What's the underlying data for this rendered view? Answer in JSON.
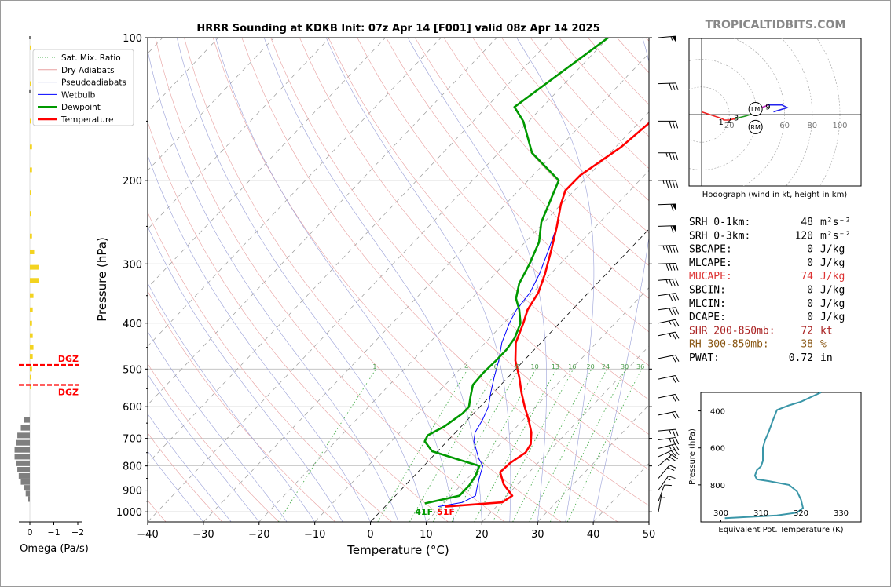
{
  "title": "HRRR Sounding at KDKB Init: 07z Apr 14 [F001] valid 08z Apr 14 2025",
  "watermark": "TROPICALTIDBITS.COM",
  "omega": {
    "xlabel": "Omega (Pa/s)",
    "ticks": [
      "0",
      "−1",
      "−2"
    ],
    "dgz_label": "DGZ",
    "dgz_pressures": [
      490,
      540
    ],
    "yellow_bars": [
      {
        "p": 105,
        "v": 0.02
      },
      {
        "p": 125,
        "v": 0.02
      },
      {
        "p": 150,
        "v": 0.02
      },
      {
        "p": 170,
        "v": 0.03
      },
      {
        "p": 190,
        "v": 0.03
      },
      {
        "p": 212,
        "v": 0.02
      },
      {
        "p": 235,
        "v": 0.02
      },
      {
        "p": 262,
        "v": 0.03
      },
      {
        "p": 283,
        "v": 0.06
      },
      {
        "p": 305,
        "v": 0.12
      },
      {
        "p": 325,
        "v": 0.12
      },
      {
        "p": 350,
        "v": 0.05
      },
      {
        "p": 375,
        "v": 0.04
      },
      {
        "p": 400,
        "v": 0.03
      },
      {
        "p": 425,
        "v": 0.04
      },
      {
        "p": 450,
        "v": 0.05
      },
      {
        "p": 470,
        "v": 0.04
      },
      {
        "p": 500,
        "v": 0.03
      },
      {
        "p": 520,
        "v": 0.02
      },
      {
        "p": 545,
        "v": 0.02
      }
    ],
    "gray_bars": [
      {
        "p": 640,
        "v": 0.08
      },
      {
        "p": 665,
        "v": 0.13
      },
      {
        "p": 690,
        "v": 0.18
      },
      {
        "p": 715,
        "v": 0.2
      },
      {
        "p": 740,
        "v": 0.22
      },
      {
        "p": 765,
        "v": 0.22
      },
      {
        "p": 790,
        "v": 0.2
      },
      {
        "p": 815,
        "v": 0.18
      },
      {
        "p": 840,
        "v": 0.16
      },
      {
        "p": 865,
        "v": 0.13
      },
      {
        "p": 890,
        "v": 0.09
      },
      {
        "p": 915,
        "v": 0.06
      },
      {
        "p": 940,
        "v": 0.03
      }
    ],
    "top_tick_pressures": [
      100,
      130
    ]
  },
  "legend": [
    {
      "label": "Sat. Mix. Ratio",
      "color": "#4caf50",
      "style": "dotted",
      "width": 1
    },
    {
      "label": "Dry Adiabats",
      "color": "#e8a0a0",
      "style": "solid",
      "width": 1
    },
    {
      "label": "Pseudoadiabats",
      "color": "#9aa0d8",
      "style": "solid",
      "width": 1
    },
    {
      "label": "Wetbulb",
      "color": "#0000ff",
      "style": "solid",
      "width": 1
    },
    {
      "label": "Dewpoint",
      "color": "#009900",
      "style": "solid",
      "width": 2.5
    },
    {
      "label": "Temperature",
      "color": "#ff0000",
      "style": "solid",
      "width": 2.5
    }
  ],
  "chart_data": {
    "type": "line",
    "subtype": "skew-t log-p",
    "xlabel": "Temperature (°C)",
    "ylabel": "Pressure (hPa)",
    "xlim": [
      -40,
      50
    ],
    "ylim": [
      1050,
      100
    ],
    "y_scale": "log",
    "x_ticks": [
      "−40",
      "−30",
      "−20",
      "−10",
      "0",
      "10",
      "20",
      "30",
      "40",
      "50"
    ],
    "y_ticks": [
      100,
      200,
      300,
      400,
      500,
      600,
      700,
      800,
      900,
      1000
    ],
    "mixing_ratio_labels": [
      "1",
      "4",
      "6",
      "8",
      "10",
      "13",
      "16",
      "20",
      "24",
      "30",
      "36"
    ],
    "mixing_ratio_values": [
      1,
      4,
      6,
      8,
      10,
      13,
      16,
      20,
      24,
      30,
      36
    ],
    "surface_labels": {
      "temperature": "51F",
      "dewpoint": "41F"
    },
    "series": [
      {
        "name": "Temperature",
        "color": "#ff0000",
        "points": [
          [
            10.8,
            975
          ],
          [
            20.3,
            955
          ],
          [
            21.0,
            925
          ],
          [
            17.5,
            875
          ],
          [
            14.8,
            825
          ],
          [
            15.0,
            790
          ],
          [
            16.0,
            750
          ],
          [
            15.5,
            720
          ],
          [
            13.6,
            680
          ],
          [
            11.0,
            640
          ],
          [
            8.0,
            600
          ],
          [
            5.0,
            560
          ],
          [
            2.0,
            520
          ],
          [
            -1.5,
            480
          ],
          [
            -4.5,
            440
          ],
          [
            -6.5,
            400
          ],
          [
            -8.0,
            375
          ],
          [
            -9.0,
            345
          ],
          [
            -11.0,
            315
          ],
          [
            -14.0,
            280
          ],
          [
            -17.0,
            250
          ],
          [
            -20.0,
            225
          ],
          [
            -21.6,
            210
          ],
          [
            -21.5,
            195
          ],
          [
            -19.0,
            170
          ],
          [
            -18.0,
            150
          ],
          [
            -18.0,
            140
          ],
          [
            -18.5,
            125
          ],
          [
            -17.0,
            100
          ]
        ]
      },
      {
        "name": "Dewpoint",
        "color": "#009900",
        "points": [
          [
            6.6,
            960
          ],
          [
            11.5,
            925
          ],
          [
            11.5,
            880
          ],
          [
            11.0,
            840
          ],
          [
            10.0,
            800
          ],
          [
            6.0,
            780
          ],
          [
            -1.0,
            745
          ],
          [
            -4.0,
            710
          ],
          [
            -4.5,
            690
          ],
          [
            -3.0,
            660
          ],
          [
            -2.0,
            620
          ],
          [
            -2.0,
            600
          ],
          [
            -3.5,
            570
          ],
          [
            -5.0,
            540
          ],
          [
            -5.2,
            510
          ],
          [
            -5.0,
            480
          ],
          [
            -5.0,
            455
          ],
          [
            -5.5,
            430
          ],
          [
            -7.0,
            400
          ],
          [
            -9.5,
            375
          ],
          [
            -12.0,
            355
          ],
          [
            -14.0,
            330
          ],
          [
            -15.5,
            300
          ],
          [
            -17.5,
            270
          ],
          [
            -20.5,
            245
          ],
          [
            -24.5,
            200
          ],
          [
            -34.0,
            175
          ],
          [
            -41.0,
            150
          ],
          [
            -45.0,
            140
          ],
          [
            -40.0,
            100
          ]
        ]
      },
      {
        "name": "Wetbulb",
        "color": "#0000ff",
        "points": [
          [
            9.5,
            975
          ],
          [
            13.2,
            955
          ],
          [
            14.4,
            925
          ],
          [
            13.0,
            880
          ],
          [
            11.8,
            840
          ],
          [
            10.6,
            800
          ],
          [
            8.5,
            770
          ],
          [
            7.0,
            745
          ],
          [
            4.8,
            710
          ],
          [
            3.5,
            680
          ],
          [
            2.7,
            640
          ],
          [
            1.5,
            600
          ],
          [
            -0.5,
            560
          ],
          [
            -2.5,
            520
          ],
          [
            -4.5,
            480
          ],
          [
            -7.0,
            440
          ],
          [
            -9.0,
            400
          ],
          [
            -10.0,
            375
          ],
          [
            -10.5,
            345
          ],
          [
            -12.0,
            315
          ],
          [
            -14.5,
            280
          ],
          [
            -17.0,
            250
          ],
          [
            -20.0,
            225
          ],
          [
            -21.6,
            210
          ],
          [
            -21.5,
            195
          ],
          [
            -19.0,
            170
          ],
          [
            -18.0,
            150
          ],
          [
            -19.0,
            125
          ],
          [
            -17.0,
            100
          ]
        ]
      }
    ],
    "wind_barbs": [
      {
        "p": 100,
        "dir": 265,
        "spd": 55
      },
      {
        "p": 125,
        "dir": 268,
        "spd": 30
      },
      {
        "p": 150,
        "dir": 270,
        "spd": 30
      },
      {
        "p": 175,
        "dir": 270,
        "spd": 35
      },
      {
        "p": 200,
        "dir": 270,
        "spd": 45
      },
      {
        "p": 225,
        "dir": 268,
        "spd": 60
      },
      {
        "p": 250,
        "dir": 268,
        "spd": 60
      },
      {
        "p": 275,
        "dir": 268,
        "spd": 45
      },
      {
        "p": 300,
        "dir": 268,
        "spd": 40
      },
      {
        "p": 325,
        "dir": 265,
        "spd": 35
      },
      {
        "p": 350,
        "dir": 262,
        "spd": 30
      },
      {
        "p": 375,
        "dir": 262,
        "spd": 30
      },
      {
        "p": 400,
        "dir": 258,
        "spd": 25
      },
      {
        "p": 425,
        "dir": 258,
        "spd": 25
      },
      {
        "p": 475,
        "dir": 258,
        "spd": 20
      },
      {
        "p": 525,
        "dir": 258,
        "spd": 20
      },
      {
        "p": 575,
        "dir": 258,
        "spd": 20
      },
      {
        "p": 625,
        "dir": 258,
        "spd": 20
      },
      {
        "p": 675,
        "dir": 265,
        "spd": 25
      },
      {
        "p": 705,
        "dir": 262,
        "spd": 25
      },
      {
        "p": 735,
        "dir": 255,
        "spd": 25
      },
      {
        "p": 765,
        "dir": 245,
        "spd": 25
      },
      {
        "p": 800,
        "dir": 230,
        "spd": 25
      },
      {
        "p": 850,
        "dir": 220,
        "spd": 20
      },
      {
        "p": 900,
        "dir": 215,
        "spd": 15
      },
      {
        "p": 950,
        "dir": 200,
        "spd": 10
      },
      {
        "p": 1000,
        "dir": 190,
        "spd": 5
      }
    ]
  },
  "hodograph": {
    "caption": "Hodograph (wind in kt, height in km)",
    "ring_labels": [
      "20",
      "40",
      "60",
      "80",
      "100"
    ],
    "ring_values": [
      20,
      40,
      60,
      80,
      100
    ],
    "lm_label": "LM",
    "rm_label": "RM",
    "lm": [
      39,
      4
    ],
    "rm": [
      39,
      -9
    ],
    "height_labels": [
      {
        "text": "1",
        "u": 14,
        "v": -5
      },
      {
        "text": "2",
        "u": 20,
        "v": -4
      },
      {
        "text": "3",
        "u": 25,
        "v": -2
      },
      {
        "text": "6",
        "u": 38,
        "v": 2
      },
      {
        "text": "9",
        "u": 48,
        "v": 6
      }
    ],
    "segments": [
      {
        "color": "#ee2222",
        "points": [
          [
            0,
            2
          ],
          [
            6,
            0
          ],
          [
            12,
            -2
          ],
          [
            15,
            -3
          ],
          [
            16,
            -4
          ],
          [
            20,
            -4
          ],
          [
            24,
            -3
          ]
        ]
      },
      {
        "color": "#229922",
        "points": [
          [
            24,
            -3
          ],
          [
            28,
            -2
          ],
          [
            32,
            -1
          ],
          [
            35,
            0
          ],
          [
            37,
            2
          ],
          [
            38,
            3
          ]
        ]
      },
      {
        "color": "#bb22bb",
        "points": [
          [
            38,
            3
          ],
          [
            40,
            5
          ],
          [
            43,
            5
          ],
          [
            46,
            6
          ],
          [
            48,
            7
          ]
        ]
      },
      {
        "color": "#2222ee",
        "points": [
          [
            48,
            7
          ],
          [
            53,
            7
          ],
          [
            58,
            7
          ],
          [
            62,
            5
          ],
          [
            52,
            2
          ]
        ]
      }
    ]
  },
  "stats": [
    {
      "label": "SRH 0-1km:",
      "value": "48",
      "unit": "m²s⁻²",
      "color": "#000000"
    },
    {
      "label": "SRH 0-3km:",
      "value": "120",
      "unit": "m²s⁻²",
      "color": "#000000"
    },
    {
      "label": "SBCAPE:",
      "value": "0",
      "unit": "J/kg",
      "color": "#000000"
    },
    {
      "label": "MLCAPE:",
      "value": "0",
      "unit": "J/kg",
      "color": "#000000"
    },
    {
      "label": "MUCAPE:",
      "value": "74",
      "unit": "J/kg",
      "color": "#dd3333"
    },
    {
      "label": "SBCIN:",
      "value": "0",
      "unit": "J/kg",
      "color": "#000000"
    },
    {
      "label": "MLCIN:",
      "value": "0",
      "unit": "J/kg",
      "color": "#000000"
    },
    {
      "label": "DCAPE:",
      "value": "0",
      "unit": "J/kg",
      "color": "#000000"
    },
    {
      "label": "SHR 200-850mb:",
      "value": "72",
      "unit": "kt",
      "color": "#aa2222"
    },
    {
      "label": "RH 300-850mb:",
      "value": "38",
      "unit": "%",
      "color": "#885511"
    },
    {
      "label": "PWAT:",
      "value": "0.72",
      "unit": "in",
      "color": "#000000"
    }
  ],
  "theta_e": {
    "xlabel": "Equivalent Pot. Temperature (K)",
    "ylabel": "Pressure (hPa)",
    "x_ticks": [
      "300",
      "310",
      "320",
      "330"
    ],
    "y_ticks": [
      "400",
      "600",
      "800"
    ],
    "xlim": [
      295,
      335
    ],
    "ylim": [
      1000,
      300
    ],
    "color": "#3a96a8",
    "points": [
      [
        301,
        980
      ],
      [
        314,
        965
      ],
      [
        319,
        950
      ],
      [
        320.5,
        925
      ],
      [
        320,
        880
      ],
      [
        319,
        835
      ],
      [
        317,
        800
      ],
      [
        312,
        780
      ],
      [
        309,
        770
      ],
      [
        308.5,
        750
      ],
      [
        309,
        720
      ],
      [
        310,
        700
      ],
      [
        310.5,
        670
      ],
      [
        310.5,
        630
      ],
      [
        310.5,
        600
      ],
      [
        311,
        560
      ],
      [
        312,
        510
      ],
      [
        313,
        450
      ],
      [
        314,
        395
      ],
      [
        317,
        370
      ],
      [
        320,
        350
      ],
      [
        325,
        300
      ]
    ]
  }
}
